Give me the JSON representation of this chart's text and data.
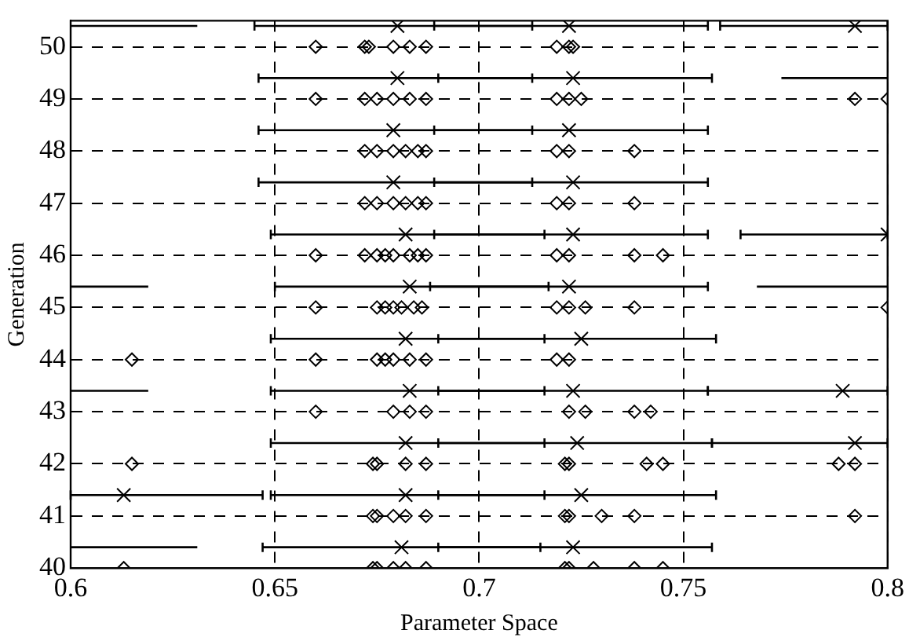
{
  "chart_data": {
    "type": "scatter",
    "xlabel": "Parameter Space",
    "ylabel": "Generation",
    "xlim": [
      0.6,
      0.8
    ],
    "xticks": [
      0.6,
      0.65,
      0.7,
      0.75,
      0.8
    ],
    "ylim": [
      40,
      50.5
    ],
    "yticks": [
      40,
      41,
      42,
      43,
      44,
      45,
      46,
      47,
      48,
      49,
      50
    ],
    "grid": true,
    "legend": false,
    "series": [
      {
        "marker": "diamond",
        "color": "#000000",
        "x": [
          0.613,
          0.674,
          0.675,
          0.679,
          0.682,
          0.687,
          0.721,
          0.722,
          0.728,
          0.738,
          0.745,
          0.674,
          0.675,
          0.679,
          0.682,
          0.687,
          0.721,
          0.722,
          0.73,
          0.738,
          0.792,
          0.615,
          0.674,
          0.675,
          0.682,
          0.687,
          0.721,
          0.722,
          0.741,
          0.745,
          0.788,
          0.792,
          0.66,
          0.679,
          0.683,
          0.687,
          0.722,
          0.726,
          0.738,
          0.742,
          0.615,
          0.66,
          0.675,
          0.677,
          0.679,
          0.683,
          0.687,
          0.719,
          0.722,
          0.66,
          0.675,
          0.677,
          0.679,
          0.681,
          0.684,
          0.686,
          0.719,
          0.722,
          0.726,
          0.738,
          0.8,
          0.66,
          0.672,
          0.675,
          0.677,
          0.679,
          0.683,
          0.685,
          0.687,
          0.719,
          0.722,
          0.738,
          0.745,
          0.672,
          0.675,
          0.679,
          0.682,
          0.685,
          0.687,
          0.719,
          0.722,
          0.738,
          0.672,
          0.675,
          0.679,
          0.682,
          0.685,
          0.687,
          0.719,
          0.722,
          0.738,
          0.66,
          0.672,
          0.675,
          0.679,
          0.683,
          0.687,
          0.719,
          0.722,
          0.725,
          0.792,
          0.8,
          0.66,
          0.672,
          0.673,
          0.679,
          0.683,
          0.687,
          0.719,
          0.722,
          0.723
        ],
        "values": [
          40,
          40,
          40,
          40,
          40,
          40,
          40,
          40,
          40,
          40,
          40,
          41,
          41,
          41,
          41,
          41,
          41,
          41,
          41,
          41,
          41,
          42,
          42,
          42,
          42,
          42,
          42,
          42,
          42,
          42,
          42,
          42,
          43,
          43,
          43,
          43,
          43,
          43,
          43,
          43,
          44,
          44,
          44,
          44,
          44,
          44,
          44,
          44,
          44,
          45,
          45,
          45,
          45,
          45,
          45,
          45,
          45,
          45,
          45,
          45,
          45,
          46,
          46,
          46,
          46,
          46,
          46,
          46,
          46,
          46,
          46,
          46,
          46,
          47,
          47,
          47,
          47,
          47,
          47,
          47,
          47,
          47,
          48,
          48,
          48,
          48,
          48,
          48,
          48,
          48,
          48,
          49,
          49,
          49,
          49,
          49,
          49,
          49,
          49,
          49,
          49,
          49,
          50,
          50,
          50,
          50,
          50,
          50,
          50,
          50,
          50
        ]
      },
      {
        "marker": "cross",
        "color": "#000000",
        "x": [
          0.681,
          0.723,
          0.613,
          0.682,
          0.725,
          0.682,
          0.724,
          0.792,
          0.683,
          0.723,
          0.789,
          0.682,
          0.725,
          0.683,
          0.722,
          0.682,
          0.723,
          0.8,
          0.679,
          0.723,
          0.679,
          0.722,
          0.68,
          0.723,
          0.68,
          0.722,
          0.792
        ],
        "values": [
          40.4,
          40.4,
          41.4,
          41.4,
          41.4,
          42.4,
          42.4,
          42.4,
          43.4,
          43.4,
          43.4,
          44.4,
          44.4,
          45.4,
          45.4,
          46.4,
          46.4,
          46.4,
          47.4,
          47.4,
          48.4,
          48.4,
          49.4,
          49.4,
          50.4,
          50.4,
          50.4
        ],
        "xerrors": [
          [
            0.647,
            0.715
          ],
          [
            0.69,
            0.757
          ],
          [
            0.6,
            0.647
          ],
          [
            0.649,
            0.716
          ],
          [
            0.69,
            0.758
          ],
          [
            0.649,
            0.716
          ],
          [
            0.69,
            0.757
          ],
          [
            0.757,
            0.8
          ],
          [
            0.649,
            0.716
          ],
          [
            0.69,
            0.756
          ],
          [
            0.756,
            0.8
          ],
          [
            0.649,
            0.716
          ],
          [
            0.69,
            0.758
          ],
          [
            0.65,
            0.717
          ],
          [
            0.688,
            0.756
          ],
          [
            0.649,
            0.716
          ],
          [
            0.689,
            0.756
          ],
          [
            0.764,
            0.8
          ],
          [
            0.646,
            0.713
          ],
          [
            0.689,
            0.756
          ],
          [
            0.646,
            0.713
          ],
          [
            0.689,
            0.756
          ],
          [
            0.646,
            0.713
          ],
          [
            0.69,
            0.757
          ],
          [
            0.645,
            0.713
          ],
          [
            0.689,
            0.756
          ],
          [
            0.759,
            0.8
          ]
        ]
      },
      {
        "type": "line",
        "marker": "none",
        "line_style": "solid",
        "color": "#000000",
        "x": [
          0.6,
          0.631
        ],
        "values": [
          40.4,
          40.4
        ]
      },
      {
        "type": "line",
        "marker": "none",
        "line_style": "solid",
        "color": "#000000",
        "x": [
          0.6,
          0.619
        ],
        "values": [
          43.4,
          43.4
        ]
      },
      {
        "type": "line",
        "marker": "none",
        "line_style": "solid",
        "color": "#000000",
        "x": [
          0.6,
          0.619
        ],
        "values": [
          45.4,
          45.4
        ]
      },
      {
        "type": "line",
        "marker": "none",
        "line_style": "solid",
        "color": "#000000",
        "x": [
          0.768,
          0.8
        ],
        "values": [
          45.4,
          45.4
        ]
      },
      {
        "type": "line",
        "marker": "none",
        "line_style": "solid",
        "color": "#000000",
        "x": [
          0.774,
          0.8
        ],
        "values": [
          49.4,
          49.4
        ]
      },
      {
        "type": "line",
        "marker": "none",
        "line_style": "solid",
        "color": "#000000",
        "x": [
          0.6,
          0.631
        ],
        "values": [
          50.4,
          50.4
        ]
      }
    ]
  }
}
